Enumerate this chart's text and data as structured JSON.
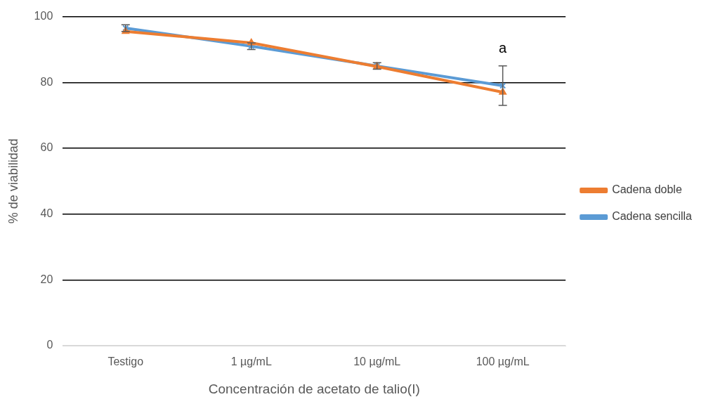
{
  "chart_data": {
    "type": "line",
    "xlabel": "Concentración de acetato de talio(I)",
    "ylabel": "% de viabilidad",
    "categories": [
      "Testigo",
      "1 µg/mL",
      "10 µg/mL",
      "100 µg/mL"
    ],
    "series": [
      {
        "name": "Cadena sencilla",
        "color": "#5b9bd5",
        "values": [
          96.5,
          91,
          85,
          79
        ],
        "errors": [
          1,
          1,
          1,
          6
        ],
        "marker": "cross"
      },
      {
        "name": "Cadena doble",
        "color": "#ed7d31",
        "values": [
          95.5,
          92,
          84.8,
          77
        ],
        "marker": "triangle"
      }
    ],
    "ylim": [
      0,
      100
    ],
    "yticks": [
      0,
      20,
      40,
      60,
      80,
      100
    ],
    "grid": "y",
    "legend": "right",
    "annotations": [
      "a"
    ]
  }
}
